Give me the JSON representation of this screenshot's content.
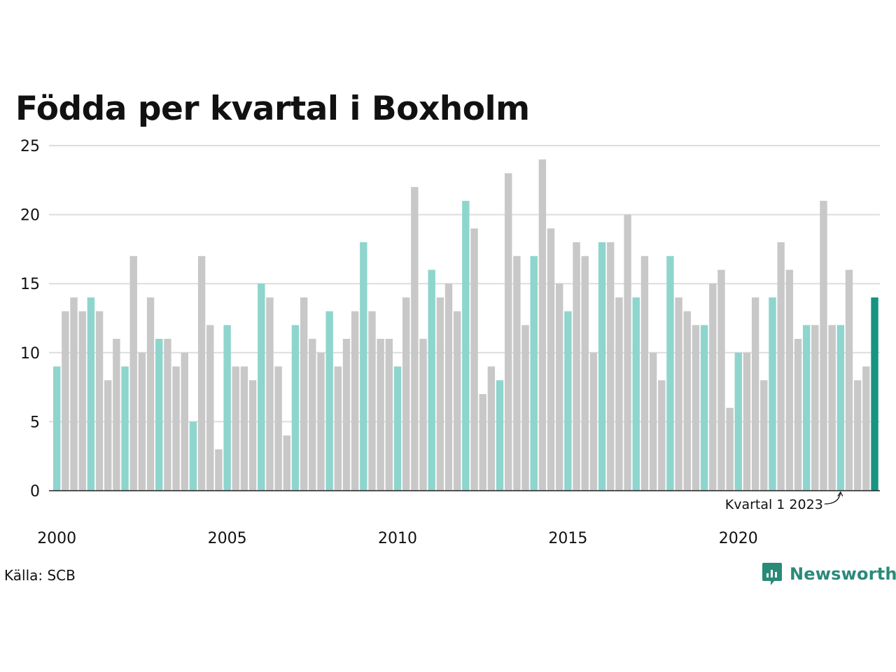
{
  "title": "Födda per kvartal i Boxholm",
  "source": "Källa: SCB",
  "brand": {
    "name": "Newsworthy",
    "icon": "newsworthy-logo-icon"
  },
  "colors": {
    "q1": "#8ed5cd",
    "other": "#c8c8c8",
    "highlight": "#159582",
    "grid": "#dddddd",
    "brand": "#2a8a78"
  },
  "chart_data": {
    "type": "bar",
    "title": "Födda per kvartal i Boxholm",
    "xlabel": "",
    "ylabel": "",
    "ylim": [
      0,
      25
    ],
    "yticks": [
      0,
      5,
      10,
      15,
      20,
      25
    ],
    "xticks": [
      "2000",
      "2005",
      "2010",
      "2015",
      "2020"
    ],
    "grid": true,
    "annotation": {
      "text": "Kvartal 1 2023",
      "year": 2023,
      "quarter": 1
    },
    "start_year": 2000,
    "values": [
      9,
      13,
      14,
      13,
      14,
      13,
      8,
      11,
      9,
      17,
      10,
      14,
      11,
      11,
      9,
      10,
      5,
      17,
      12,
      3,
      12,
      9,
      9,
      8,
      15,
      14,
      9,
      4,
      12,
      14,
      11,
      10,
      13,
      9,
      11,
      13,
      18,
      13,
      11,
      11,
      9,
      14,
      22,
      11,
      16,
      14,
      15,
      13,
      21,
      19,
      7,
      9,
      8,
      23,
      17,
      12,
      17,
      24,
      19,
      15,
      13,
      18,
      17,
      10,
      18,
      18,
      14,
      20,
      14,
      17,
      10,
      8,
      17,
      14,
      13,
      12,
      12,
      15,
      16,
      6,
      10,
      10,
      14,
      8,
      14,
      18,
      16,
      11,
      12,
      12,
      21,
      12,
      12,
      16,
      8,
      9,
      14
    ]
  }
}
